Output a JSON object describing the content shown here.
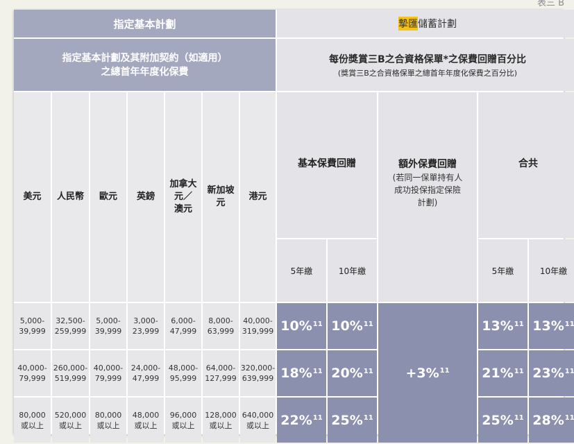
{
  "page_label": "表三 B",
  "header": {
    "left_title": "指定基本計劃",
    "right_title_highlight": "摯匯",
    "right_title_rest": "儲蓄計劃",
    "left_sub_line1": "指定基本計劃及其附加契約（如適用）",
    "left_sub_line2": "之總首年年度化保費",
    "right_sub_title": "每份獎賞三B之合資格保單*之保費回贈百分比",
    "right_sub_note": "(獎賞三B之合資格保單之總首年年度化保費之百分比)"
  },
  "currencies": [
    {
      "line1": "美元",
      "line2": "",
      "line3": ""
    },
    {
      "line1": "人民幣",
      "line2": "",
      "line3": ""
    },
    {
      "line1": "歐元",
      "line2": "",
      "line3": ""
    },
    {
      "line1": "英鎊",
      "line2": "",
      "line3": ""
    },
    {
      "line1": "加拿大",
      "line2": "元／",
      "line3": "澳元"
    },
    {
      "line1": "新加坡",
      "line2": "元",
      "line3": ""
    },
    {
      "line1": "港元",
      "line2": "",
      "line3": ""
    }
  ],
  "rebate_headers": {
    "basic": "基本保費回贈",
    "extra_title": "額外保費回贈",
    "extra_note1": "(若同一保單持有人",
    "extra_note2": "成功投保指定保險",
    "extra_note3": "計劃)",
    "total": "合共",
    "year5": "5年繳",
    "year10": "10年繳"
  },
  "rows": [
    {
      "bands": [
        {
          "top": "5,000-",
          "bottom": "39,999"
        },
        {
          "top": "32,500-",
          "bottom": "259,999"
        },
        {
          "top": "5,000-",
          "bottom": "39,999"
        },
        {
          "top": "3,000-",
          "bottom": "23,999"
        },
        {
          "top": "6,000-",
          "bottom": "47,999"
        },
        {
          "top": "8,000-",
          "bottom": "63,999"
        },
        {
          "top": "40,000-",
          "bottom": "319,999"
        }
      ],
      "basic5": "10%",
      "basic10": "10%",
      "total5": "13%",
      "total10": "13%"
    },
    {
      "bands": [
        {
          "top": "40,000-",
          "bottom": "79,999"
        },
        {
          "top": "260,000-",
          "bottom": "519,999"
        },
        {
          "top": "40,000-",
          "bottom": "79,999"
        },
        {
          "top": "24,000-",
          "bottom": "47,999"
        },
        {
          "top": "48,000-",
          "bottom": "95,999"
        },
        {
          "top": "64,000-",
          "bottom": "127,999"
        },
        {
          "top": "320,000-",
          "bottom": "639,999"
        }
      ],
      "basic5": "18%",
      "basic10": "20%",
      "total5": "21%",
      "total10": "23%"
    },
    {
      "bands": [
        {
          "top": "80,000",
          "bottom": "或以上"
        },
        {
          "top": "520,000",
          "bottom": "或以上"
        },
        {
          "top": "80,000",
          "bottom": "或以上"
        },
        {
          "top": "48,000",
          "bottom": "或以上"
        },
        {
          "top": "96,000",
          "bottom": "或以上"
        },
        {
          "top": "128,000",
          "bottom": "或以上"
        },
        {
          "top": "640,000",
          "bottom": "或以上"
        }
      ],
      "basic5": "22%",
      "basic10": "25%",
      "total5": "25%",
      "total10": "28%"
    }
  ],
  "extra_value": "+3%",
  "footnote_ref": "11",
  "colors": {
    "header_left": "#a3a8bf",
    "header_right": "#e4e4e8",
    "percent_fill": "#8a90ad",
    "highlight": "#f4c21a"
  }
}
